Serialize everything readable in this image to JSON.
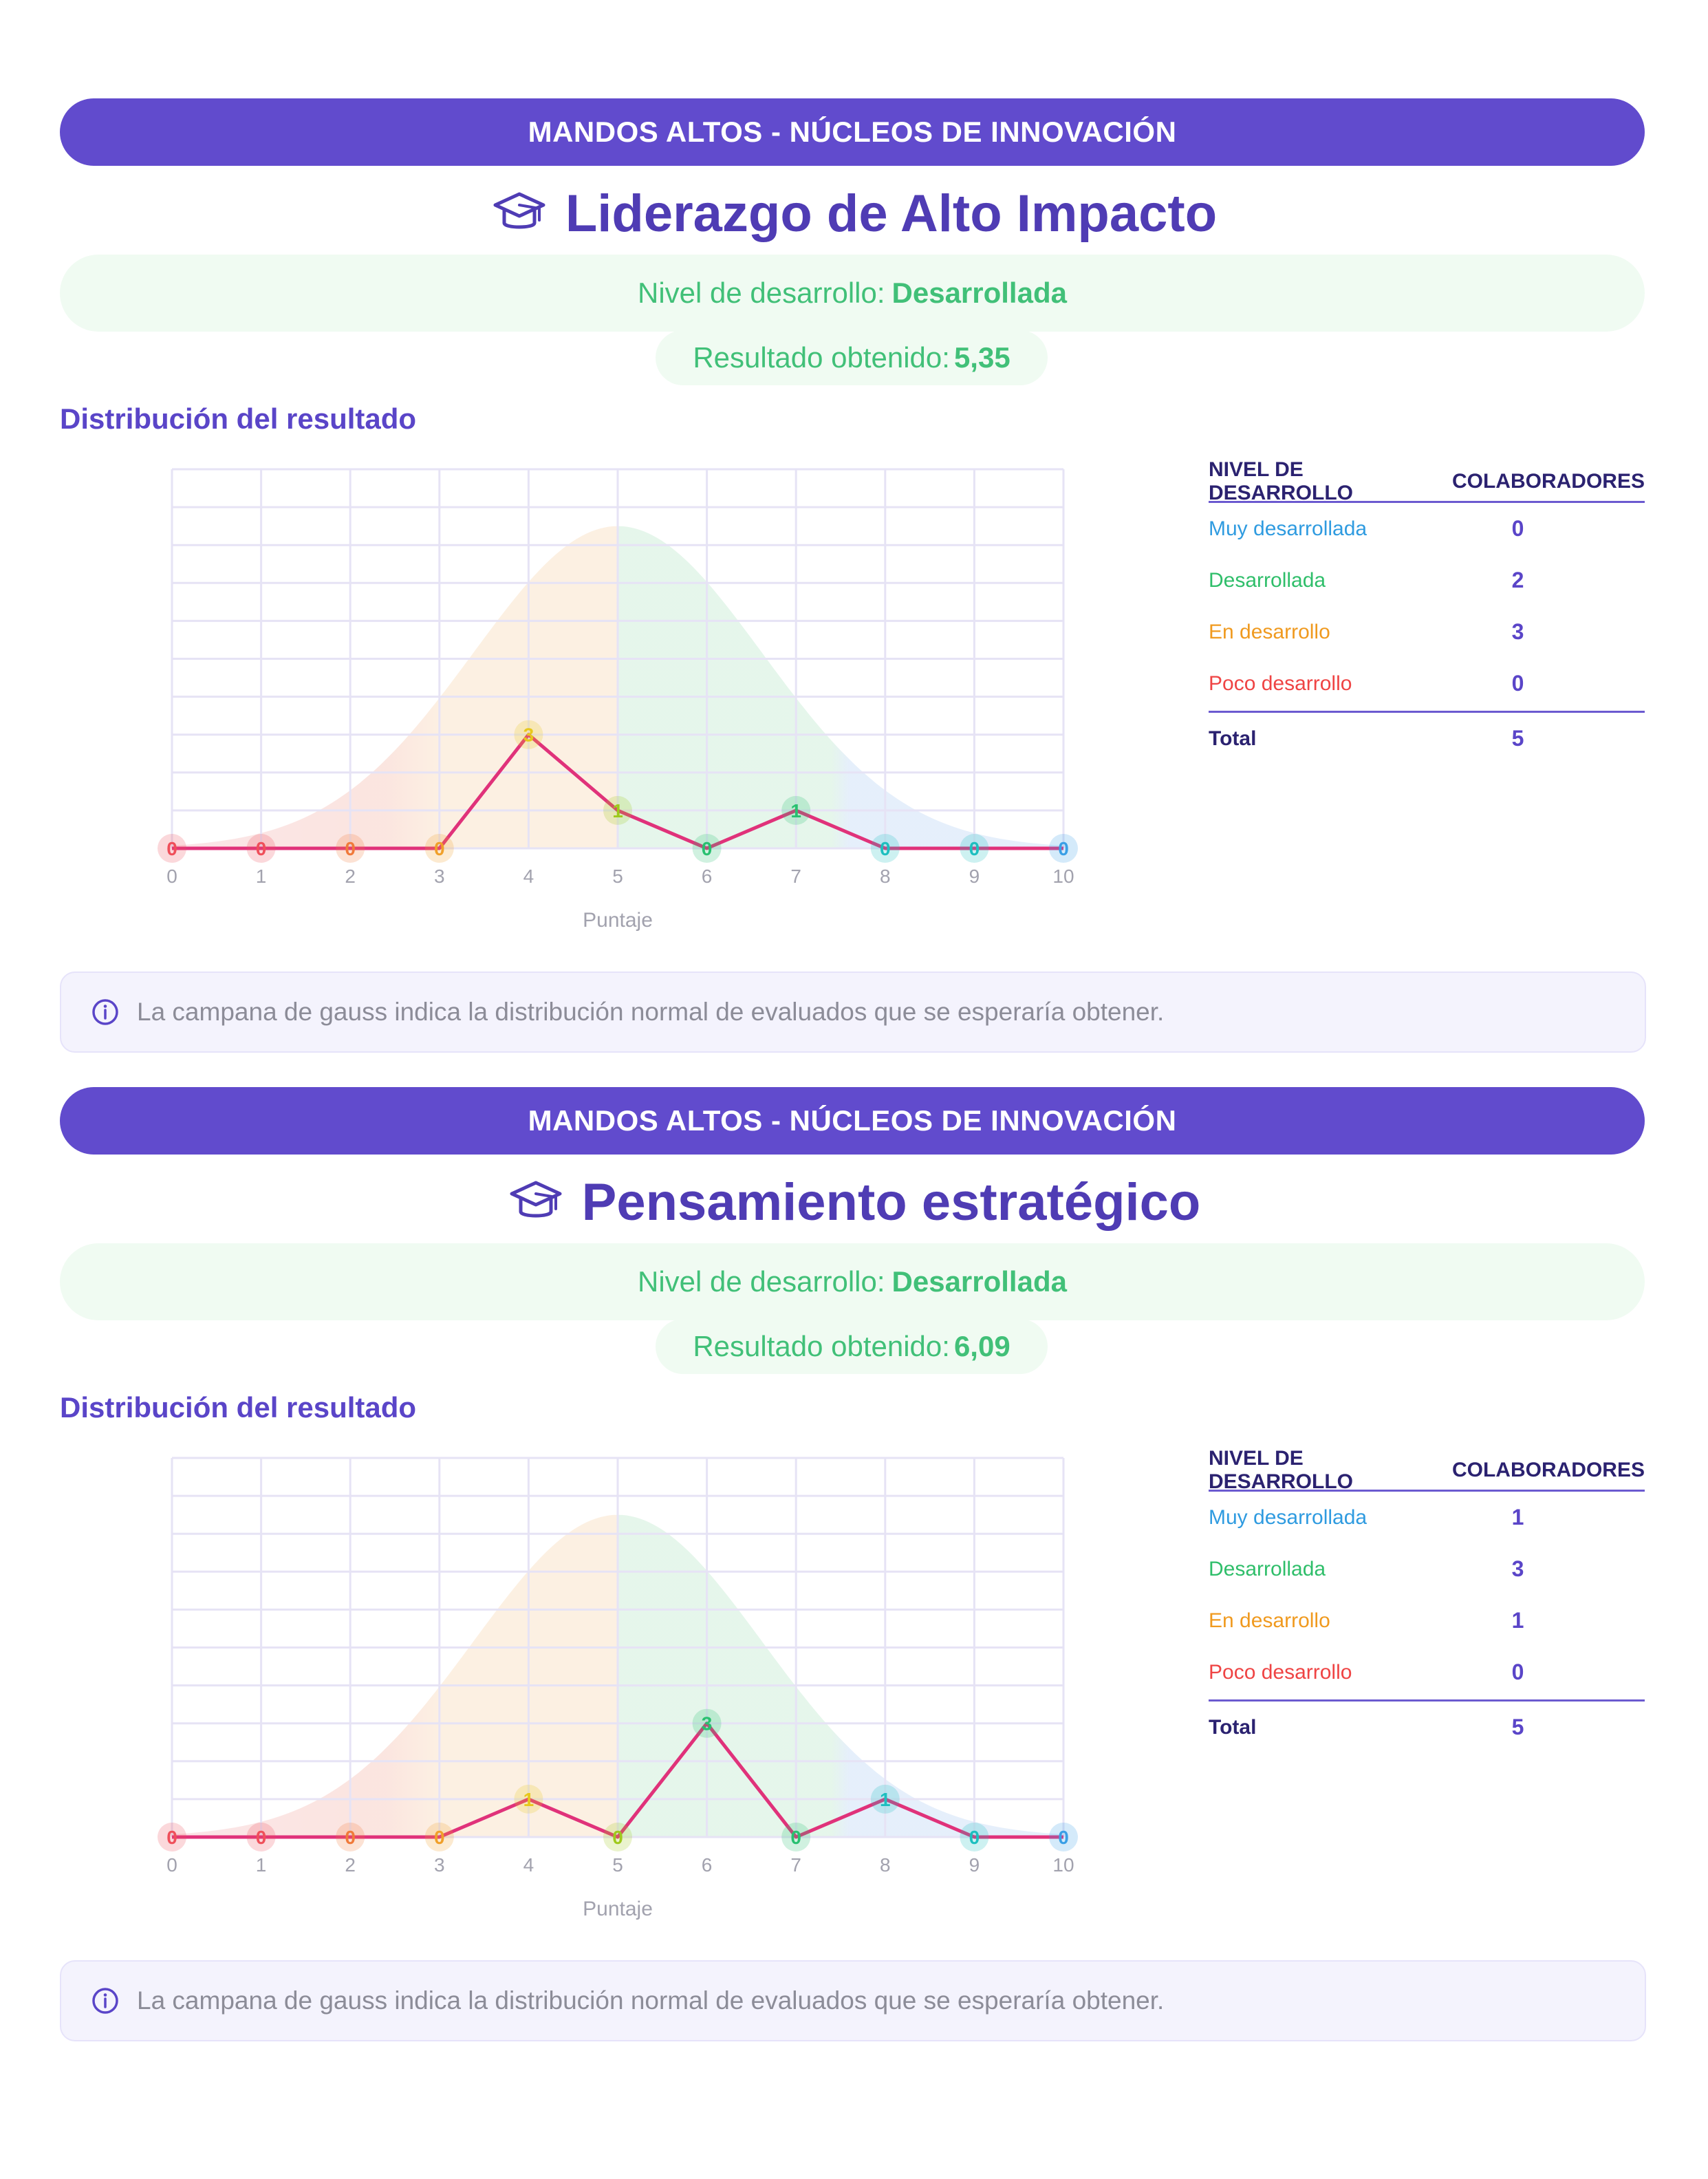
{
  "sections": [
    {
      "banner": "MANDOS ALTOS - NÚCLEOS DE INNOVACIÓN",
      "title": "Liderazgo de Alto Impacto",
      "level_label": "Nivel de desarrollo:",
      "level_value": "Desarrollada",
      "result_label": "Resultado obtenido:",
      "result_value": "5,35",
      "dist_title": "Distribución del resultado",
      "chart_data": {
        "type": "line",
        "x": [
          0,
          1,
          2,
          3,
          4,
          5,
          6,
          7,
          8,
          9,
          10
        ],
        "series": [
          {
            "values": [
              0,
              0,
              0,
              0,
              3,
              1,
              0,
              1,
              0,
              0,
              0
            ]
          }
        ],
        "xlabel": "Puntaje",
        "xlim": [
          0,
          10
        ],
        "ylim": [
          0,
          10
        ],
        "grid": true,
        "background": "gauss-bell",
        "point_colors": [
          "#ef4f5a",
          "#ef4f5a",
          "#f07a3a",
          "#f0a02a",
          "#e7c81c",
          "#9ec91c",
          "#28c070",
          "#28c070",
          "#1dbfbf",
          "#1dbfbf",
          "#3a9fe6"
        ]
      },
      "table": {
        "headers": [
          "NIVEL DE DESARROLLO",
          "COLABORADORES"
        ],
        "rows": [
          {
            "label": "Muy desarrollada",
            "value": "0",
            "color": "#2f9be0"
          },
          {
            "label": "Desarrollada",
            "value": "2",
            "color": "#2fbe6a"
          },
          {
            "label": "En desarrollo",
            "value": "3",
            "color": "#f09a1f"
          },
          {
            "label": "Poco desarrollo",
            "value": "0",
            "color": "#ef4444"
          }
        ],
        "total_label": "Total",
        "total_value": "5"
      },
      "note": "La campana de gauss indica la distribución normal de evaluados que se esperaría obtener."
    },
    {
      "banner": "MANDOS ALTOS - NÚCLEOS DE INNOVACIÓN",
      "title": "Pensamiento estratégico",
      "level_label": "Nivel de desarrollo:",
      "level_value": "Desarrollada",
      "result_label": "Resultado obtenido:",
      "result_value": "6,09",
      "dist_title": "Distribución del resultado",
      "chart_data": {
        "type": "line",
        "x": [
          0,
          1,
          2,
          3,
          4,
          5,
          6,
          7,
          8,
          9,
          10
        ],
        "series": [
          {
            "values": [
              0,
              0,
              0,
              0,
              1,
              0,
              3,
              0,
              1,
              0,
              0
            ]
          }
        ],
        "xlabel": "Puntaje",
        "xlim": [
          0,
          10
        ],
        "ylim": [
          0,
          10
        ],
        "grid": true,
        "background": "gauss-bell",
        "point_colors": [
          "#ef4f5a",
          "#ef4f5a",
          "#f07a3a",
          "#f0a02a",
          "#e7c81c",
          "#9ec91c",
          "#28c070",
          "#28c070",
          "#1dbfbf",
          "#1dbfbf",
          "#3a9fe6"
        ]
      },
      "table": {
        "headers": [
          "NIVEL DE DESARROLLO",
          "COLABORADORES"
        ],
        "rows": [
          {
            "label": "Muy desarrollada",
            "value": "1",
            "color": "#2f9be0"
          },
          {
            "label": "Desarrollada",
            "value": "3",
            "color": "#2fbe6a"
          },
          {
            "label": "En desarrollo",
            "value": "1",
            "color": "#f09a1f"
          },
          {
            "label": "Poco desarrollo",
            "value": "0",
            "color": "#ef4444"
          }
        ],
        "total_label": "Total",
        "total_value": "5"
      },
      "note": "La campana de gauss indica la distribución normal de evaluados que se esperaría obtener."
    }
  ],
  "colors": {
    "brand": "#614bcd",
    "title": "#4f3cb4",
    "level_green": "#41c078",
    "line": "#e0327a"
  }
}
